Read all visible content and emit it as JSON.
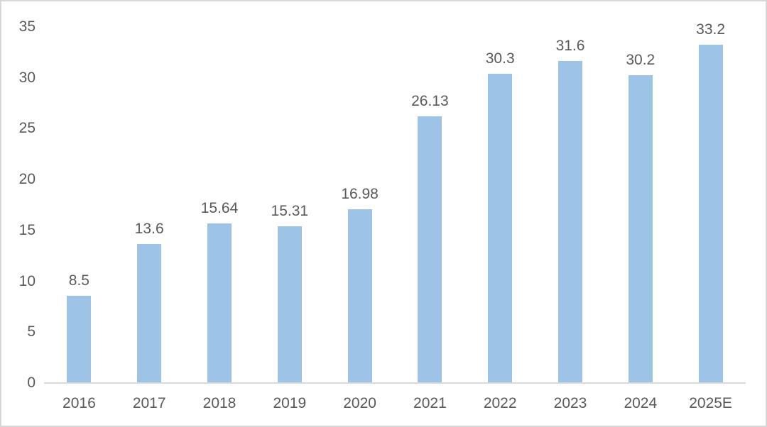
{
  "chart_data": {
    "type": "bar",
    "categories": [
      "2016",
      "2017",
      "2018",
      "2019",
      "2020",
      "2021",
      "2022",
      "2023",
      "2024",
      "2025E"
    ],
    "values": [
      8.5,
      13.6,
      15.64,
      15.31,
      16.98,
      26.13,
      30.3,
      31.6,
      30.2,
      33.2
    ],
    "value_labels": [
      "8.5",
      "13.6",
      "15.64",
      "15.31",
      "16.98",
      "26.13",
      "30.3",
      "31.6",
      "30.2",
      "33.2"
    ],
    "title": "",
    "xlabel": "",
    "ylabel": "",
    "ylim": [
      0,
      35
    ],
    "yticks": [
      0,
      5,
      10,
      15,
      20,
      25,
      30,
      35
    ],
    "grid": false,
    "legend": "none",
    "bar_color": "#9DC3E6",
    "axis_line_color": "#D9D9D9",
    "text_color": "#595959"
  }
}
